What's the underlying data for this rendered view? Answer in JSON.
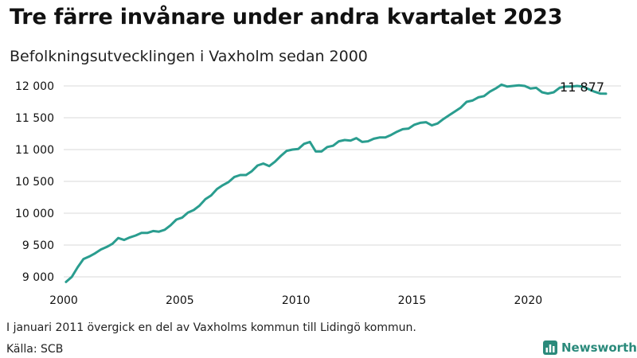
{
  "title": "Tre färre invånare under andra kvartalet 2023",
  "subtitle": "Befolkningsutvecklingen i Vaxholm sedan 2000",
  "footnote": "I januari 2011 övergick en del av Vaxholms kommun till Lidingö kommun.",
  "source": "Källa: SCB",
  "brand": {
    "name": "Newsworthy",
    "color": "#2a8a7b"
  },
  "colors": {
    "line": "#2a9d8f",
    "grid": "#d9d9d9",
    "text": "#111111"
  },
  "chart_data": {
    "type": "line",
    "title": "Tre färre invånare under andra kvartalet 2023",
    "subtitle": "Befolkningsutvecklingen i Vaxholm sedan 2000",
    "xlabel": "",
    "ylabel": "",
    "xlim": [
      2000,
      2024
    ],
    "ylim": [
      8900,
      12100
    ],
    "x_ticks": [
      2000,
      2005,
      2010,
      2015,
      2020
    ],
    "x_tick_labels": [
      "2000",
      "2005",
      "2010",
      "2015",
      "2020"
    ],
    "y_ticks": [
      9000,
      9500,
      10000,
      10500,
      11000,
      11500,
      12000
    ],
    "y_tick_labels": [
      "9 000",
      "9 500",
      "10 000",
      "10 500",
      "11 000",
      "11 500",
      "12 000"
    ],
    "grid": "horizontal",
    "end_label": "11 877",
    "series": [
      {
        "x": [
          2000.1,
          2000.35,
          2000.6,
          2000.85,
          2001.1,
          2001.35,
          2001.6,
          2001.85,
          2002.1,
          2002.35,
          2002.6,
          2002.85,
          2003.1,
          2003.35,
          2003.6,
          2003.85,
          2004.1,
          2004.35,
          2004.6,
          2004.85,
          2005.1,
          2005.35,
          2005.6,
          2005.85,
          2006.1,
          2006.35,
          2006.6,
          2006.85,
          2007.1,
          2007.35,
          2007.6,
          2007.85,
          2008.1,
          2008.35,
          2008.6,
          2008.85,
          2009.1,
          2009.35,
          2009.6,
          2009.85,
          2010.1,
          2010.35,
          2010.6,
          2010.85,
          2011.1,
          2011.35,
          2011.6,
          2011.85,
          2012.1,
          2012.35,
          2012.6,
          2012.85,
          2013.1,
          2013.35,
          2013.6,
          2013.85,
          2014.1,
          2014.35,
          2014.6,
          2014.85,
          2015.1,
          2015.35,
          2015.6,
          2015.85,
          2016.1,
          2016.35,
          2016.6,
          2016.85,
          2017.1,
          2017.35,
          2017.6,
          2017.85,
          2018.1,
          2018.35,
          2018.6,
          2018.85,
          2019.1,
          2019.35,
          2019.6,
          2019.85,
          2020.1,
          2020.35,
          2020.6,
          2020.85,
          2021.1,
          2021.35,
          2021.6,
          2021.85,
          2022.1,
          2022.35,
          2022.6,
          2022.85,
          2023.1,
          2023.35
        ],
        "y": [
          8920,
          9000,
          9150,
          9280,
          9320,
          9370,
          9430,
          9470,
          9520,
          9610,
          9580,
          9620,
          9650,
          9690,
          9690,
          9720,
          9710,
          9740,
          9810,
          9900,
          9930,
          10010,
          10050,
          10120,
          10220,
          10280,
          10380,
          10440,
          10490,
          10570,
          10600,
          10600,
          10660,
          10750,
          10780,
          10740,
          10810,
          10900,
          10980,
          11000,
          11010,
          11090,
          11120,
          10970,
          10970,
          11040,
          11060,
          11130,
          11150,
          11140,
          11180,
          11120,
          11130,
          11170,
          11190,
          11190,
          11230,
          11280,
          11320,
          11330,
          11390,
          11420,
          11430,
          11380,
          11410,
          11480,
          11540,
          11600,
          11660,
          11750,
          11770,
          11820,
          11840,
          11910,
          11960,
          12020,
          11990,
          12000,
          12010,
          12000,
          11960,
          11970,
          11900,
          11880,
          11900,
          11970,
          11990,
          11990,
          12000,
          11990,
          11950,
          11910,
          11880,
          11877
        ]
      }
    ]
  }
}
